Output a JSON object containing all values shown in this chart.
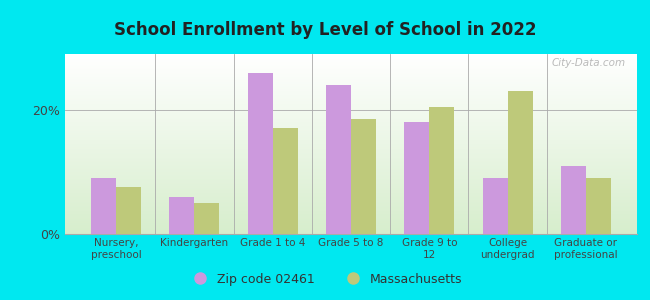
{
  "title": "School Enrollment by Level of School in 2022",
  "categories": [
    "Nursery,\npreschool",
    "Kindergarten",
    "Grade 1 to 4",
    "Grade 5 to 8",
    "Grade 9 to\n12",
    "College\nundergrad",
    "Graduate or\nprofessional"
  ],
  "zip_values": [
    9.0,
    6.0,
    26.0,
    24.0,
    18.0,
    9.0,
    11.0
  ],
  "ma_values": [
    7.5,
    5.0,
    17.0,
    18.5,
    20.5,
    23.0,
    9.0
  ],
  "zip_color": "#cc99dd",
  "ma_color": "#bec97a",
  "background_outer": "#00e8f0",
  "yticks": [
    0,
    20
  ],
  "ylim": [
    0,
    29
  ],
  "zip_label": "Zip code 02461",
  "ma_label": "Massachusetts",
  "watermark": "City-Data.com"
}
